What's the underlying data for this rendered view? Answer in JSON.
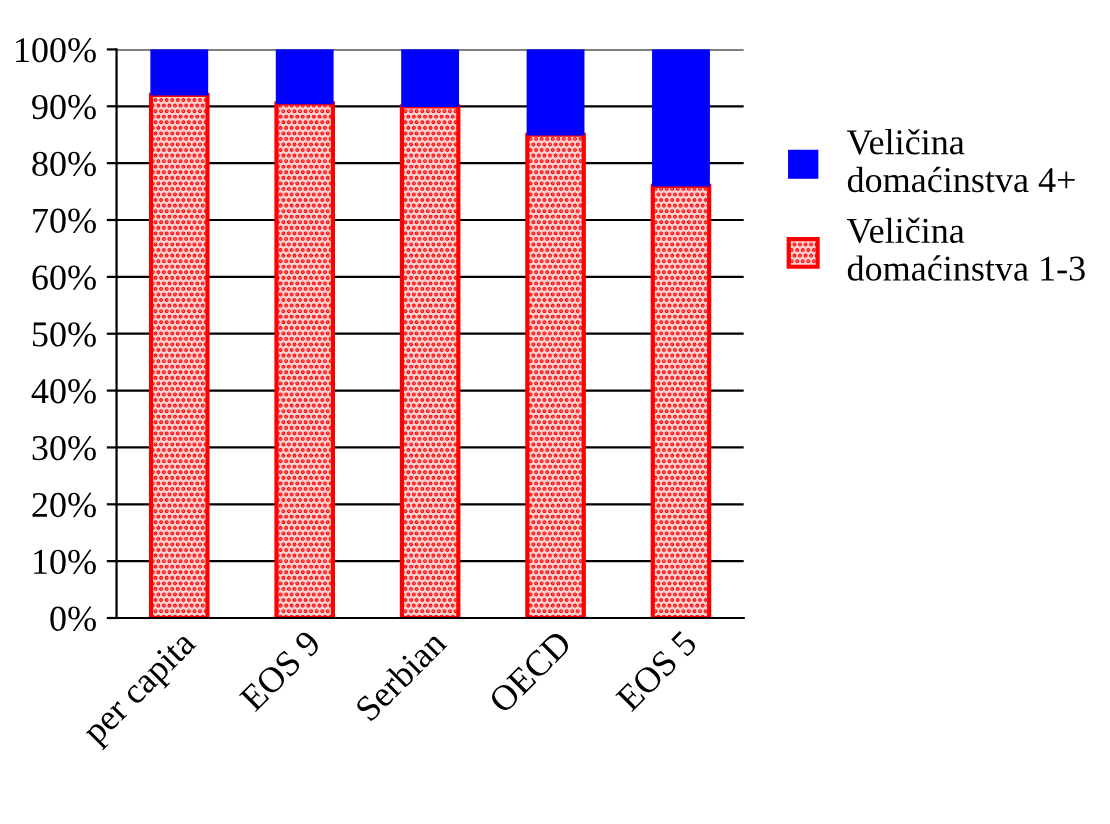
{
  "chart_data": {
    "type": "bar",
    "stacked": true,
    "categories": [
      "per capita",
      "EOS 9",
      "Serbian",
      "OECD",
      "EOS 5"
    ],
    "series": [
      {
        "name": "Veličina domaćinstva 1-3",
        "color": "#ff0000",
        "values": [
          92,
          90.5,
          90,
          85,
          76
        ]
      },
      {
        "name": "Veličina domaćinstva 4+",
        "color": "#0000ff",
        "values": [
          8,
          9.5,
          10,
          15,
          24
        ]
      }
    ],
    "ylim": [
      0,
      100
    ],
    "yticks": [
      {
        "value": 0,
        "label": "0%"
      },
      {
        "value": 10,
        "label": "10%"
      },
      {
        "value": 20,
        "label": "20%"
      },
      {
        "value": 30,
        "label": "30%"
      },
      {
        "value": 40,
        "label": "40%"
      },
      {
        "value": 50,
        "label": "50%"
      },
      {
        "value": 60,
        "label": "60%"
      },
      {
        "value": 70,
        "label": "70%"
      },
      {
        "value": 80,
        "label": "80%"
      },
      {
        "value": 90,
        "label": "90%"
      },
      {
        "value": 100,
        "label": "100%"
      }
    ],
    "grid": "y",
    "legend": "right"
  }
}
